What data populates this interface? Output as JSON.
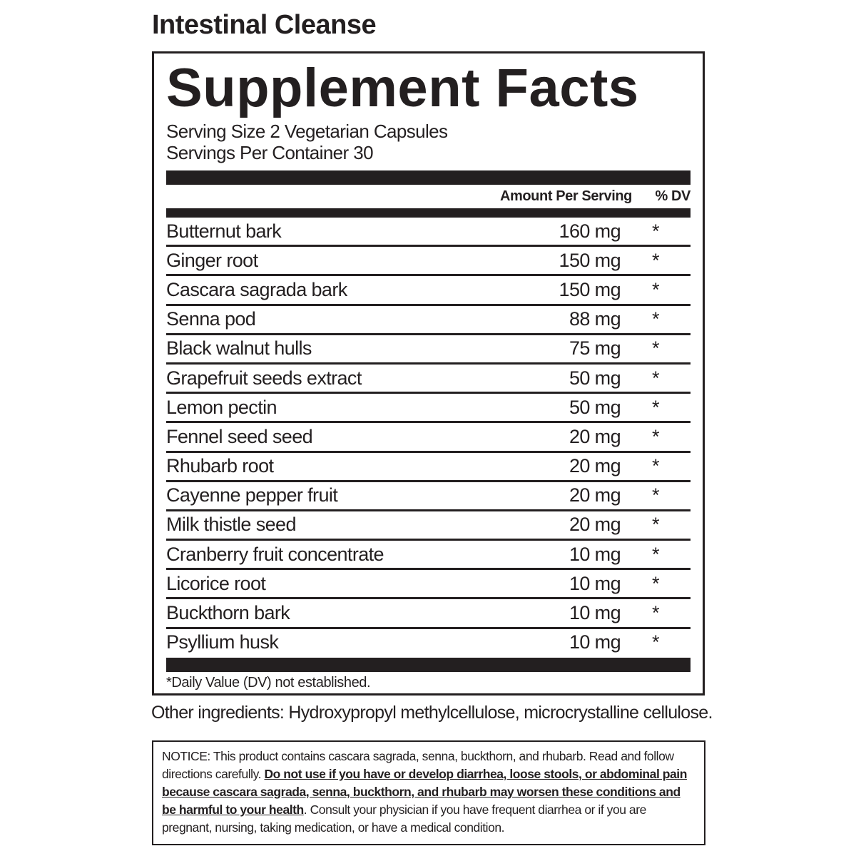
{
  "title": "Intestinal Cleanse",
  "facts": {
    "heading": "Supplement Facts",
    "serving_size": "Serving Size 2 Vegetarian Capsules",
    "servings_per_container": "Servings Per Container 30",
    "columns": {
      "amount": "Amount Per Serving",
      "dv": "% DV"
    },
    "rows": [
      [
        "Butternut bark",
        "160 mg",
        "*"
      ],
      [
        "Ginger root",
        "150 mg",
        "*"
      ],
      [
        "Cascara sagrada bark",
        "150 mg",
        "*"
      ],
      [
        "Senna pod",
        "88 mg",
        "*"
      ],
      [
        "Black walnut hulls",
        "75 mg",
        "*"
      ],
      [
        "Grapefruit seeds extract",
        "50 mg",
        "*"
      ],
      [
        "Lemon pectin",
        "50 mg",
        "*"
      ],
      [
        "Fennel seed seed",
        "20 mg",
        "*"
      ],
      [
        "Rhubarb root",
        "20 mg",
        "*"
      ],
      [
        "Cayenne pepper fruit",
        "20 mg",
        "*"
      ],
      [
        "Milk thistle seed",
        "20 mg",
        "*"
      ],
      [
        "Cranberry fruit concentrate",
        "10 mg",
        "*"
      ],
      [
        "Licorice root",
        "10 mg",
        "*"
      ],
      [
        "Buckthorn bark",
        "10 mg",
        "*"
      ],
      [
        "Psyllium husk",
        "10 mg",
        "*"
      ]
    ],
    "footnote": "*Daily Value (DV) not established."
  },
  "other_ingredients": "Other ingredients: Hydroxypropyl methylcellulose, microcrystalline cellulose.",
  "notice": {
    "intro": "NOTICE: This product contains cascara sagrada, senna, buckthorn, and rhubarb. Read and follow directions carefully.",
    "warning": "Do not use if you have or develop diarrhea, loose stools, or abdominal pain because cascara sagrada, senna, buckthorn, and rhubarb may worsen these conditions and be harmful to your health",
    "rest": ". Consult your physician if you have frequent diarrhea or if you are pregnant, nursing, taking medication, or have a medical condition."
  }
}
